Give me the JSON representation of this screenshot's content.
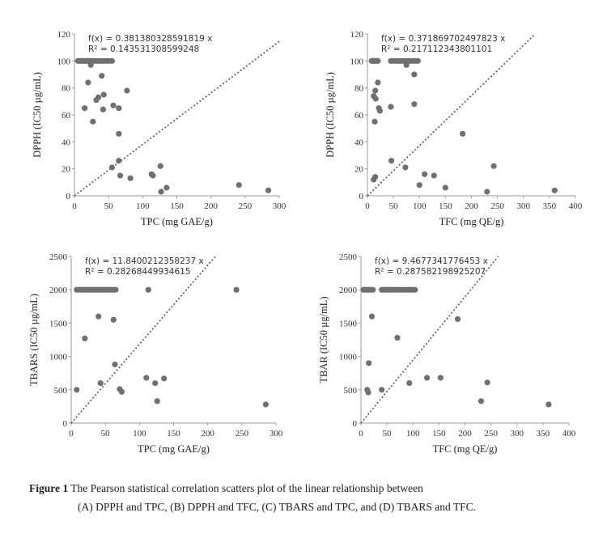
{
  "chart_data": [
    {
      "type": "scatter",
      "xlabel": "TPC (mg GAE/g)",
      "ylabel": "DPPH (IC50 µg/mL)",
      "xlim": [
        0,
        300
      ],
      "ylim": [
        0,
        120
      ],
      "xticks": [
        0,
        50,
        100,
        150,
        200,
        250,
        300
      ],
      "yticks": [
        0,
        20,
        40,
        60,
        80,
        100,
        120
      ],
      "equation": "f(x) = 0.381380328591819 x",
      "r2": "R² = 0.143531308599248",
      "slope": 0.381380328591819,
      "points": [
        [
          5,
          100
        ],
        [
          7,
          100
        ],
        [
          9,
          100
        ],
        [
          11,
          100
        ],
        [
          13,
          100
        ],
        [
          15,
          100
        ],
        [
          17,
          100
        ],
        [
          19,
          100
        ],
        [
          21,
          100
        ],
        [
          23,
          100
        ],
        [
          25,
          100
        ],
        [
          27,
          100
        ],
        [
          30,
          100
        ],
        [
          33,
          100
        ],
        [
          36,
          100
        ],
        [
          39,
          100
        ],
        [
          43,
          100
        ],
        [
          47,
          100
        ],
        [
          51,
          100
        ],
        [
          55,
          100
        ],
        [
          24,
          97
        ],
        [
          20,
          84
        ],
        [
          40,
          89
        ],
        [
          35,
          73
        ],
        [
          32,
          71
        ],
        [
          15,
          65
        ],
        [
          27,
          55
        ],
        [
          43,
          75
        ],
        [
          42,
          64
        ],
        [
          57,
          67
        ],
        [
          65,
          65
        ],
        [
          77,
          78
        ],
        [
          65,
          46
        ],
        [
          65,
          26
        ],
        [
          67,
          15
        ],
        [
          55,
          21
        ],
        [
          82,
          13
        ],
        [
          113,
          16
        ],
        [
          115,
          15
        ],
        [
          126,
          22
        ],
        [
          127,
          3
        ],
        [
          135,
          6
        ],
        [
          241,
          8
        ],
        [
          284,
          4
        ]
      ]
    },
    {
      "type": "scatter",
      "xlabel": "TFC (mg QE/g)",
      "ylabel": "DPPH (IC50 µg/mL)",
      "xlim": [
        0,
        400
      ],
      "ylim": [
        0,
        120
      ],
      "xticks": [
        0,
        50,
        100,
        150,
        200,
        250,
        300,
        350,
        400
      ],
      "yticks": [
        0,
        20,
        40,
        60,
        80,
        100,
        120
      ],
      "equation": "f(x) = 0.371869702497823 x",
      "r2": "R² = 0.217112343801101",
      "slope": 0.371869702497823,
      "points": [
        [
          8,
          100
        ],
        [
          10,
          100
        ],
        [
          12,
          100
        ],
        [
          14,
          100
        ],
        [
          16,
          100
        ],
        [
          18,
          100
        ],
        [
          20,
          100
        ],
        [
          45,
          100
        ],
        [
          49,
          100
        ],
        [
          53,
          100
        ],
        [
          57,
          100
        ],
        [
          61,
          100
        ],
        [
          65,
          100
        ],
        [
          69,
          100
        ],
        [
          73,
          100
        ],
        [
          77,
          100
        ],
        [
          81,
          100
        ],
        [
          85,
          100
        ],
        [
          89,
          100
        ],
        [
          93,
          100
        ],
        [
          97,
          100
        ],
        [
          20,
          84
        ],
        [
          15,
          78
        ],
        [
          12,
          74
        ],
        [
          16,
          72
        ],
        [
          22,
          65
        ],
        [
          24,
          63
        ],
        [
          45,
          66
        ],
        [
          90,
          68
        ],
        [
          90,
          90
        ],
        [
          75,
          97
        ],
        [
          14,
          55
        ],
        [
          46,
          26
        ],
        [
          73,
          21
        ],
        [
          110,
          16
        ],
        [
          128,
          15
        ],
        [
          150,
          6
        ],
        [
          183,
          46
        ],
        [
          243,
          22
        ],
        [
          100,
          8
        ],
        [
          230,
          3
        ],
        [
          360,
          4
        ],
        [
          15,
          14
        ],
        [
          12,
          12
        ]
      ]
    },
    {
      "type": "scatter",
      "xlabel": "TPC (mg GAE/g)",
      "ylabel": "TBARS (IC50 µg/mL)",
      "xlim": [
        0,
        300
      ],
      "ylim": [
        0,
        2500
      ],
      "xticks": [
        0,
        50,
        100,
        150,
        200,
        250,
        300
      ],
      "yticks": [
        0,
        500,
        1000,
        1500,
        2000,
        2500
      ],
      "equation": "f(x) = 11.8400212358237 x",
      "r2": "R² = 0.28268449934615",
      "slope": 11.8400212358237,
      "points": [
        [
          8,
          2000
        ],
        [
          11,
          2000
        ],
        [
          14,
          2000
        ],
        [
          17,
          2000
        ],
        [
          20,
          2000
        ],
        [
          23,
          2000
        ],
        [
          26,
          2000
        ],
        [
          29,
          2000
        ],
        [
          32,
          2000
        ],
        [
          35,
          2000
        ],
        [
          38,
          2000
        ],
        [
          41,
          2000
        ],
        [
          44,
          2000
        ],
        [
          47,
          2000
        ],
        [
          50,
          2000
        ],
        [
          53,
          2000
        ],
        [
          56,
          2000
        ],
        [
          59,
          2000
        ],
        [
          62,
          2000
        ],
        [
          65,
          2000
        ],
        [
          113,
          2000
        ],
        [
          242,
          2000
        ],
        [
          20,
          1270
        ],
        [
          40,
          1600
        ],
        [
          62,
          1550
        ],
        [
          64,
          880
        ],
        [
          43,
          600
        ],
        [
          8,
          500
        ],
        [
          71,
          510
        ],
        [
          74,
          470
        ],
        [
          110,
          680
        ],
        [
          123,
          600
        ],
        [
          136,
          670
        ],
        [
          126,
          330
        ],
        [
          285,
          280
        ]
      ]
    },
    {
      "type": "scatter",
      "xlabel": "TFC (mg QE/g)",
      "ylabel": "TBAR (IC50 µg/mL)",
      "xlim": [
        0,
        400
      ],
      "ylim": [
        0,
        2500
      ],
      "xticks": [
        0,
        50,
        100,
        150,
        200,
        250,
        300,
        350,
        400
      ],
      "yticks": [
        0,
        500,
        1000,
        1500,
        2000,
        2500
      ],
      "equation": "f(x) = 9.4677341776453 x",
      "r2": "R² = 0.287582198925207",
      "slope": 9.4677341776453,
      "points": [
        [
          5,
          2000
        ],
        [
          8,
          2000
        ],
        [
          11,
          2000
        ],
        [
          14,
          2000
        ],
        [
          17,
          2000
        ],
        [
          20,
          2000
        ],
        [
          23,
          2000
        ],
        [
          40,
          2000
        ],
        [
          44,
          2000
        ],
        [
          48,
          2000
        ],
        [
          52,
          2000
        ],
        [
          56,
          2000
        ],
        [
          60,
          2000
        ],
        [
          64,
          2000
        ],
        [
          68,
          2000
        ],
        [
          72,
          2000
        ],
        [
          76,
          2000
        ],
        [
          80,
          2000
        ],
        [
          84,
          2000
        ],
        [
          88,
          2000
        ],
        [
          92,
          2000
        ],
        [
          96,
          2000
        ],
        [
          100,
          2000
        ],
        [
          104,
          2000
        ],
        [
          15,
          900
        ],
        [
          21,
          1600
        ],
        [
          70,
          1280
        ],
        [
          186,
          1560
        ],
        [
          12,
          500
        ],
        [
          14,
          460
        ],
        [
          40,
          500
        ],
        [
          93,
          600
        ],
        [
          127,
          680
        ],
        [
          153,
          680
        ],
        [
          243,
          610
        ],
        [
          231,
          330
        ],
        [
          361,
          280
        ]
      ]
    }
  ],
  "caption": {
    "label": "Figure 1",
    "line1": "The Pearson statistical correlation scatters plot of the linear relationship between",
    "line2": "(A) DPPH and TPC, (B) DPPH and TFC, (C) TBARS and TPC, and (D) TBARS and TFC."
  }
}
